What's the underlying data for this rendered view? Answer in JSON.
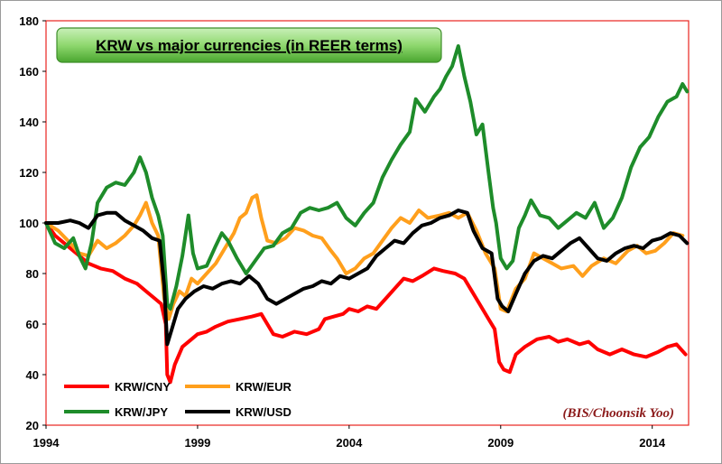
{
  "chart_data": {
    "type": "line",
    "title": "KRW vs major currencies (in REER terms)",
    "credit": "(BIS/Choonsik Yoo)",
    "xlim": [
      1994,
      2015.2
    ],
    "ylim": [
      20,
      180
    ],
    "x_ticks": [
      1994,
      1999,
      2004,
      2009,
      2014
    ],
    "y_ticks": [
      20,
      40,
      60,
      80,
      100,
      120,
      140,
      160,
      180
    ],
    "grid": false,
    "legend_position": "bottom-left",
    "series": [
      {
        "name": "KRW/CNY",
        "color": "#ff0000",
        "points": [
          [
            1994.0,
            100
          ],
          [
            1994.3,
            95
          ],
          [
            1994.6,
            92
          ],
          [
            1995.0,
            88
          ],
          [
            1995.4,
            84
          ],
          [
            1995.8,
            82
          ],
          [
            1996.2,
            81
          ],
          [
            1996.6,
            78
          ],
          [
            1997.0,
            76
          ],
          [
            1997.3,
            73
          ],
          [
            1997.6,
            70
          ],
          [
            1997.8,
            68
          ],
          [
            1997.95,
            60
          ],
          [
            1998.0,
            40
          ],
          [
            1998.1,
            37
          ],
          [
            1998.25,
            44
          ],
          [
            1998.5,
            51
          ],
          [
            1998.8,
            54
          ],
          [
            1999.0,
            56
          ],
          [
            1999.3,
            57
          ],
          [
            1999.6,
            59
          ],
          [
            2000.0,
            61
          ],
          [
            2000.4,
            62
          ],
          [
            2000.8,
            63
          ],
          [
            2001.1,
            64
          ],
          [
            2001.3,
            60
          ],
          [
            2001.5,
            56
          ],
          [
            2001.8,
            55
          ],
          [
            2002.2,
            57
          ],
          [
            2002.6,
            56
          ],
          [
            2003.0,
            58
          ],
          [
            2003.2,
            62
          ],
          [
            2003.5,
            63
          ],
          [
            2003.8,
            64
          ],
          [
            2004.0,
            66
          ],
          [
            2004.3,
            65
          ],
          [
            2004.6,
            67
          ],
          [
            2004.9,
            66
          ],
          [
            2005.2,
            70
          ],
          [
            2005.5,
            74
          ],
          [
            2005.8,
            78
          ],
          [
            2006.1,
            77
          ],
          [
            2006.4,
            79
          ],
          [
            2006.8,
            82
          ],
          [
            2007.1,
            81
          ],
          [
            2007.5,
            80
          ],
          [
            2007.8,
            78
          ],
          [
            2008.0,
            74
          ],
          [
            2008.3,
            68
          ],
          [
            2008.6,
            62
          ],
          [
            2008.8,
            58
          ],
          [
            2008.95,
            45
          ],
          [
            2009.1,
            42
          ],
          [
            2009.3,
            41
          ],
          [
            2009.5,
            48
          ],
          [
            2009.8,
            51
          ],
          [
            2010.2,
            54
          ],
          [
            2010.6,
            55
          ],
          [
            2010.9,
            53
          ],
          [
            2011.2,
            54
          ],
          [
            2011.6,
            52
          ],
          [
            2011.9,
            53
          ],
          [
            2012.2,
            50
          ],
          [
            2012.6,
            48
          ],
          [
            2013.0,
            50
          ],
          [
            2013.4,
            48
          ],
          [
            2013.8,
            47
          ],
          [
            2014.2,
            49
          ],
          [
            2014.5,
            51
          ],
          [
            2014.8,
            52
          ],
          [
            2015.1,
            48
          ]
        ]
      },
      {
        "name": "KRW/EUR",
        "color": "#ff9f1c",
        "points": [
          [
            1994.0,
            100
          ],
          [
            1994.4,
            97
          ],
          [
            1994.8,
            92
          ],
          [
            1995.1,
            88
          ],
          [
            1995.4,
            87
          ],
          [
            1995.7,
            93
          ],
          [
            1996.0,
            90
          ],
          [
            1996.3,
            92
          ],
          [
            1996.6,
            95
          ],
          [
            1996.9,
            99
          ],
          [
            1997.1,
            103
          ],
          [
            1997.3,
            108
          ],
          [
            1997.5,
            100
          ],
          [
            1997.7,
            95
          ],
          [
            1997.9,
            70
          ],
          [
            1998.05,
            62
          ],
          [
            1998.2,
            68
          ],
          [
            1998.4,
            73
          ],
          [
            1998.6,
            71
          ],
          [
            1998.8,
            78
          ],
          [
            1999.0,
            76
          ],
          [
            1999.3,
            80
          ],
          [
            1999.6,
            84
          ],
          [
            1999.9,
            90
          ],
          [
            2000.2,
            96
          ],
          [
            2000.4,
            102
          ],
          [
            2000.6,
            104
          ],
          [
            2000.8,
            110
          ],
          [
            2000.95,
            111
          ],
          [
            2001.1,
            102
          ],
          [
            2001.3,
            93
          ],
          [
            2001.6,
            92
          ],
          [
            2001.9,
            94
          ],
          [
            2002.2,
            98
          ],
          [
            2002.5,
            97
          ],
          [
            2002.8,
            95
          ],
          [
            2003.1,
            94
          ],
          [
            2003.4,
            89
          ],
          [
            2003.6,
            86
          ],
          [
            2003.9,
            80
          ],
          [
            2004.2,
            82
          ],
          [
            2004.5,
            86
          ],
          [
            2004.8,
            88
          ],
          [
            2005.1,
            93
          ],
          [
            2005.4,
            98
          ],
          [
            2005.7,
            102
          ],
          [
            2006.0,
            100
          ],
          [
            2006.3,
            105
          ],
          [
            2006.6,
            102
          ],
          [
            2007.0,
            103
          ],
          [
            2007.3,
            104
          ],
          [
            2007.6,
            102
          ],
          [
            2007.9,
            104
          ],
          [
            2008.2,
            97
          ],
          [
            2008.5,
            88
          ],
          [
            2008.8,
            82
          ],
          [
            2009.0,
            66
          ],
          [
            2009.2,
            65
          ],
          [
            2009.5,
            74
          ],
          [
            2009.8,
            78
          ],
          [
            2010.1,
            88
          ],
          [
            2010.4,
            86
          ],
          [
            2010.7,
            84
          ],
          [
            2011.0,
            82
          ],
          [
            2011.4,
            83
          ],
          [
            2011.7,
            79
          ],
          [
            2012.0,
            83
          ],
          [
            2012.4,
            86
          ],
          [
            2012.8,
            84
          ],
          [
            2013.2,
            89
          ],
          [
            2013.5,
            91
          ],
          [
            2013.8,
            88
          ],
          [
            2014.1,
            89
          ],
          [
            2014.4,
            92
          ],
          [
            2014.7,
            96
          ],
          [
            2015.0,
            95
          ]
        ]
      },
      {
        "name": "KRW/JPY",
        "color": "#1e8c2a",
        "points": [
          [
            1994.0,
            100
          ],
          [
            1994.3,
            92
          ],
          [
            1994.6,
            90
          ],
          [
            1994.9,
            94
          ],
          [
            1995.1,
            87
          ],
          [
            1995.3,
            82
          ],
          [
            1995.5,
            92
          ],
          [
            1995.7,
            108
          ],
          [
            1996.0,
            114
          ],
          [
            1996.3,
            116
          ],
          [
            1996.6,
            115
          ],
          [
            1996.9,
            120
          ],
          [
            1997.1,
            126
          ],
          [
            1997.3,
            120
          ],
          [
            1997.5,
            110
          ],
          [
            1997.7,
            103
          ],
          [
            1997.85,
            95
          ],
          [
            1998.0,
            68
          ],
          [
            1998.1,
            66
          ],
          [
            1998.3,
            75
          ],
          [
            1998.5,
            87
          ],
          [
            1998.7,
            103
          ],
          [
            1998.85,
            88
          ],
          [
            1999.0,
            82
          ],
          [
            1999.3,
            83
          ],
          [
            1999.6,
            91
          ],
          [
            1999.8,
            96
          ],
          [
            2000.0,
            93
          ],
          [
            2000.3,
            86
          ],
          [
            2000.6,
            80
          ],
          [
            2000.9,
            85
          ],
          [
            2001.2,
            90
          ],
          [
            2001.5,
            91
          ],
          [
            2001.8,
            96
          ],
          [
            2002.1,
            98
          ],
          [
            2002.4,
            104
          ],
          [
            2002.7,
            106
          ],
          [
            2003.0,
            105
          ],
          [
            2003.3,
            106
          ],
          [
            2003.6,
            108
          ],
          [
            2003.9,
            102
          ],
          [
            2004.2,
            99
          ],
          [
            2004.5,
            104
          ],
          [
            2004.8,
            108
          ],
          [
            2005.1,
            118
          ],
          [
            2005.4,
            125
          ],
          [
            2005.7,
            131
          ],
          [
            2006.0,
            136
          ],
          [
            2006.2,
            149
          ],
          [
            2006.5,
            144
          ],
          [
            2006.8,
            150
          ],
          [
            2007.0,
            153
          ],
          [
            2007.2,
            158
          ],
          [
            2007.4,
            162
          ],
          [
            2007.6,
            170
          ],
          [
            2007.8,
            158
          ],
          [
            2008.0,
            148
          ],
          [
            2008.2,
            135
          ],
          [
            2008.4,
            139
          ],
          [
            2008.6,
            120
          ],
          [
            2008.75,
            106
          ],
          [
            2008.85,
            100
          ],
          [
            2009.0,
            86
          ],
          [
            2009.2,
            82
          ],
          [
            2009.4,
            85
          ],
          [
            2009.6,
            98
          ],
          [
            2009.8,
            103
          ],
          [
            2010.0,
            109
          ],
          [
            2010.3,
            103
          ],
          [
            2010.6,
            102
          ],
          [
            2010.9,
            98
          ],
          [
            2011.2,
            101
          ],
          [
            2011.5,
            104
          ],
          [
            2011.8,
            102
          ],
          [
            2012.1,
            108
          ],
          [
            2012.4,
            98
          ],
          [
            2012.7,
            102
          ],
          [
            2013.0,
            110
          ],
          [
            2013.3,
            122
          ],
          [
            2013.6,
            130
          ],
          [
            2013.9,
            134
          ],
          [
            2014.2,
            142
          ],
          [
            2014.5,
            148
          ],
          [
            2014.8,
            150
          ],
          [
            2015.0,
            155
          ],
          [
            2015.15,
            152
          ]
        ]
      },
      {
        "name": "KRW/USD",
        "color": "#000000",
        "points": [
          [
            1994.0,
            100
          ],
          [
            1994.4,
            100
          ],
          [
            1994.8,
            101
          ],
          [
            1995.1,
            100
          ],
          [
            1995.4,
            98
          ],
          [
            1995.7,
            103
          ],
          [
            1996.0,
            104
          ],
          [
            1996.3,
            104
          ],
          [
            1996.6,
            101
          ],
          [
            1996.9,
            99
          ],
          [
            1997.2,
            97
          ],
          [
            1997.5,
            94
          ],
          [
            1997.75,
            93
          ],
          [
            1997.9,
            75
          ],
          [
            1998.0,
            52
          ],
          [
            1998.15,
            58
          ],
          [
            1998.35,
            66
          ],
          [
            1998.6,
            70
          ],
          [
            1998.9,
            73
          ],
          [
            1999.2,
            75
          ],
          [
            1999.5,
            74
          ],
          [
            1999.8,
            76
          ],
          [
            2000.1,
            77
          ],
          [
            2000.4,
            76
          ],
          [
            2000.7,
            79
          ],
          [
            2001.0,
            76
          ],
          [
            2001.3,
            70
          ],
          [
            2001.6,
            68
          ],
          [
            2001.9,
            70
          ],
          [
            2002.2,
            72
          ],
          [
            2002.5,
            74
          ],
          [
            2002.8,
            75
          ],
          [
            2003.1,
            77
          ],
          [
            2003.4,
            76
          ],
          [
            2003.7,
            79
          ],
          [
            2004.0,
            78
          ],
          [
            2004.3,
            80
          ],
          [
            2004.6,
            82
          ],
          [
            2004.9,
            87
          ],
          [
            2005.2,
            90
          ],
          [
            2005.5,
            93
          ],
          [
            2005.8,
            92
          ],
          [
            2006.1,
            96
          ],
          [
            2006.4,
            99
          ],
          [
            2006.7,
            100
          ],
          [
            2007.0,
            102
          ],
          [
            2007.3,
            103
          ],
          [
            2007.6,
            105
          ],
          [
            2007.9,
            104
          ],
          [
            2008.1,
            97
          ],
          [
            2008.4,
            90
          ],
          [
            2008.7,
            88
          ],
          [
            2008.9,
            70
          ],
          [
            2009.05,
            67
          ],
          [
            2009.25,
            65
          ],
          [
            2009.5,
            72
          ],
          [
            2009.8,
            80
          ],
          [
            2010.1,
            85
          ],
          [
            2010.4,
            87
          ],
          [
            2010.7,
            86
          ],
          [
            2011.0,
            89
          ],
          [
            2011.3,
            92
          ],
          [
            2011.6,
            94
          ],
          [
            2011.9,
            90
          ],
          [
            2012.2,
            86
          ],
          [
            2012.5,
            85
          ],
          [
            2012.8,
            88
          ],
          [
            2013.1,
            90
          ],
          [
            2013.4,
            91
          ],
          [
            2013.7,
            90
          ],
          [
            2014.0,
            93
          ],
          [
            2014.3,
            94
          ],
          [
            2014.6,
            96
          ],
          [
            2014.9,
            95
          ],
          [
            2015.15,
            92
          ]
        ]
      }
    ]
  }
}
